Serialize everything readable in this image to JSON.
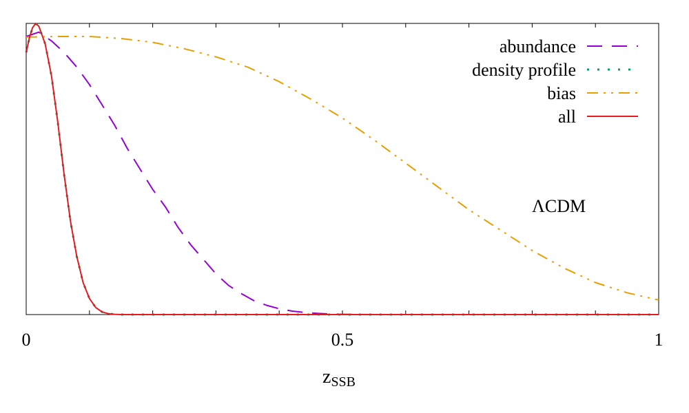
{
  "chart_data": {
    "type": "line",
    "xlabel": "z",
    "xlabel_sub": "SSB",
    "ylabel": "",
    "xlim": [
      0,
      1
    ],
    "ylim": [
      0,
      1
    ],
    "xticks": [
      0,
      0.5,
      1
    ],
    "xtick_labels": [
      "0",
      "0.5",
      "1"
    ],
    "annotation": "ΛCDM",
    "legend_position": "top-right",
    "grid": false,
    "series": [
      {
        "name": "abundance",
        "color": "#9400d3",
        "dash": "dashed",
        "x": [
          0,
          0.02,
          0.04,
          0.06,
          0.08,
          0.1,
          0.12,
          0.14,
          0.16,
          0.18,
          0.2,
          0.22,
          0.24,
          0.26,
          0.28,
          0.3,
          0.32,
          0.34,
          0.36,
          0.38,
          0.4,
          0.42,
          0.44,
          0.46,
          0.48,
          0.5,
          0.55,
          0.6,
          0.7,
          0.8,
          0.9,
          1.0
        ],
        "y": [
          0.955,
          0.97,
          0.94,
          0.9,
          0.85,
          0.79,
          0.72,
          0.65,
          0.57,
          0.5,
          0.43,
          0.37,
          0.3,
          0.24,
          0.19,
          0.14,
          0.1,
          0.072,
          0.048,
          0.032,
          0.02,
          0.012,
          0.007,
          0.004,
          0.002,
          0.001,
          0.0,
          0.0,
          0.0,
          0.0,
          0.0,
          0.0
        ]
      },
      {
        "name": "density profile",
        "color": "#009e73",
        "dash": "dotted",
        "x": [
          0,
          0.005,
          0.01,
          0.015,
          0.02,
          0.03,
          0.04,
          0.05,
          0.06,
          0.07,
          0.08,
          0.09,
          0.1,
          0.11,
          0.12,
          0.13,
          0.14,
          0.15,
          0.2,
          0.3,
          0.5,
          0.7,
          1.0
        ],
        "y": [
          0.9,
          0.95,
          0.985,
          1.0,
          0.99,
          0.93,
          0.82,
          0.66,
          0.48,
          0.32,
          0.2,
          0.11,
          0.055,
          0.024,
          0.009,
          0.003,
          0.001,
          0.0,
          0.0,
          0.0,
          0.0,
          0.0,
          0.0
        ]
      },
      {
        "name": "bias",
        "color": "#e69f00",
        "dash": "dashdotdot",
        "x": [
          0,
          0.05,
          0.1,
          0.15,
          0.2,
          0.25,
          0.3,
          0.35,
          0.4,
          0.45,
          0.5,
          0.55,
          0.6,
          0.65,
          0.7,
          0.75,
          0.8,
          0.85,
          0.9,
          0.95,
          1.0
        ],
        "y": [
          0.953,
          0.955,
          0.955,
          0.948,
          0.935,
          0.913,
          0.885,
          0.85,
          0.8,
          0.74,
          0.675,
          0.6,
          0.52,
          0.44,
          0.36,
          0.29,
          0.22,
          0.16,
          0.11,
          0.075,
          0.05
        ]
      },
      {
        "name": "all",
        "color": "#e41a1c",
        "dash": "solid",
        "x": [
          0,
          0.005,
          0.01,
          0.015,
          0.02,
          0.03,
          0.04,
          0.05,
          0.06,
          0.07,
          0.08,
          0.09,
          0.1,
          0.11,
          0.12,
          0.13,
          0.14,
          0.15,
          0.2,
          0.3,
          0.5,
          0.7,
          1.0
        ],
        "y": [
          0.9,
          0.95,
          0.985,
          1.0,
          0.99,
          0.93,
          0.82,
          0.66,
          0.48,
          0.32,
          0.2,
          0.11,
          0.055,
          0.024,
          0.009,
          0.003,
          0.001,
          0.0,
          0.0,
          0.0,
          0.0,
          0.0,
          0.0
        ]
      }
    ]
  }
}
